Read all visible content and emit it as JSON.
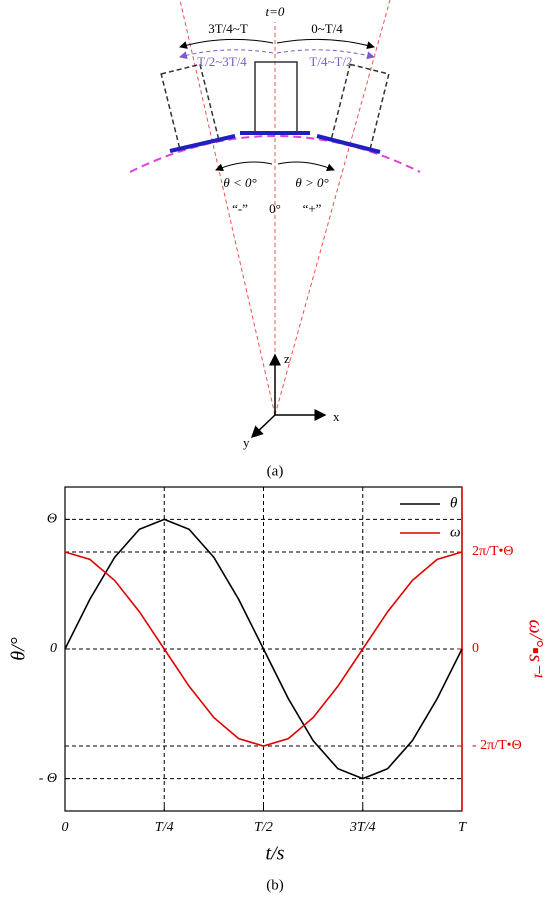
{
  "diagram": {
    "t0": "t=0",
    "interval_1": "3T/4~T",
    "interval_2": "0~T/4",
    "interval_3": "T/2~3T/4",
    "interval_4": "T/4~T/2",
    "angle_neg": "θ < 0°",
    "angle_pos": "θ > 0°",
    "sign_neg": "“-”",
    "zero": "0°",
    "sign_pos": "“+”",
    "axis_z": "z",
    "axis_x": "x",
    "axis_y": "y",
    "caption": "(a)"
  },
  "chart_data": {
    "type": "line",
    "caption": "(b)",
    "xlabel": "t/s",
    "ylabel": "θ/°",
    "y2label": "ω/°▪s⁻¹",
    "x": [
      0,
      0.0625,
      0.125,
      0.1875,
      0.25,
      0.3125,
      0.375,
      0.4375,
      0.5,
      0.5625,
      0.625,
      0.6875,
      0.75,
      0.8125,
      0.875,
      0.9375,
      1
    ],
    "xlim": [
      0,
      1
    ],
    "xticks": [
      0,
      {
        "value": 0.25,
        "label": "T/4"
      },
      {
        "value": 0.5,
        "label": "T/2"
      },
      {
        "value": 0.75,
        "label": "3T/4"
      },
      {
        "value": 1,
        "label": "T"
      }
    ],
    "ylim": [
      -1.25,
      1.25
    ],
    "yticks": [
      {
        "value": 1,
        "label": "Θ"
      },
      0,
      {
        "value": -1,
        "label": "- Θ"
      }
    ],
    "y2lim": [
      -1.67,
      1.67
    ],
    "y2ticks": [
      {
        "value": 1,
        "label": "2π/T•Θ"
      },
      0,
      {
        "value": -1,
        "label": "- 2π/T•Θ"
      }
    ],
    "y2color": "#e00000",
    "series": [
      {
        "name": "θ",
        "color": "#000000",
        "values": [
          0,
          0.383,
          0.707,
          0.924,
          1,
          0.924,
          0.707,
          0.383,
          0,
          -0.383,
          -0.707,
          -0.924,
          -1,
          -0.924,
          -0.707,
          -0.383,
          0
        ]
      },
      {
        "name": "ω",
        "color": "#e00000",
        "axis": "y2",
        "values": [
          1,
          0.924,
          0.707,
          0.383,
          0,
          -0.383,
          -0.707,
          -0.924,
          -1,
          -0.924,
          -0.707,
          -0.383,
          0,
          0.383,
          0.707,
          0.924,
          1
        ]
      }
    ]
  }
}
